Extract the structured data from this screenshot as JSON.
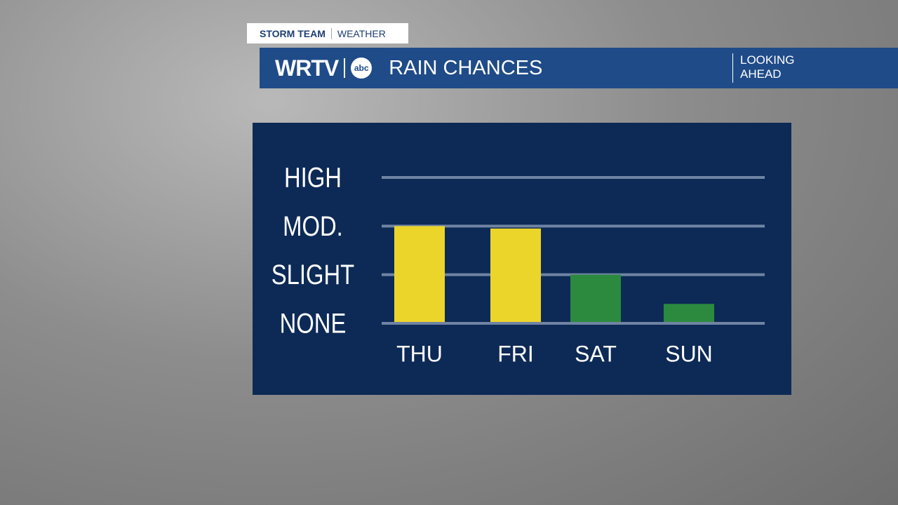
{
  "header": {
    "tag": "STORM TEAM",
    "tag_sub": "WEATHER",
    "station": "WRTV",
    "network": "abc",
    "side_note": "LOOKING AHEAD"
  },
  "chart_data": {
    "type": "bar",
    "title": "RAIN CHANCES",
    "categories": [
      "THU",
      "FRI",
      "SAT",
      "SUN"
    ],
    "values": [
      2,
      1.95,
      1,
      0.4
    ],
    "colors": [
      "#ecd52a",
      "#ecd52a",
      "#2b8a3e",
      "#2b8a3e"
    ],
    "ylim": [
      0,
      3
    ],
    "yticks": [
      {
        "value": 0,
        "label": "NONE"
      },
      {
        "value": 1,
        "label": "SLIGHT"
      },
      {
        "value": 2,
        "label": "MOD."
      },
      {
        "value": 3,
        "label": "HIGH"
      }
    ],
    "grid": true
  }
}
